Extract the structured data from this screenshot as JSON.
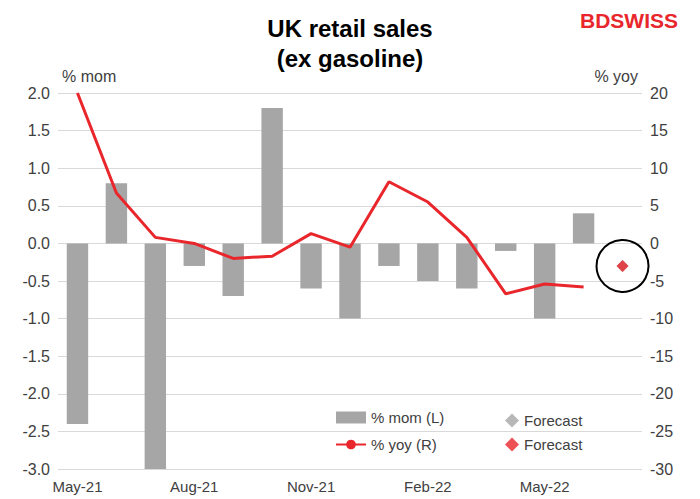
{
  "chart_data": {
    "type": "bar",
    "title": "UK retail sales\n(ex gasoline)",
    "annotations": [
      "BDSWISS"
    ],
    "y_label": "% mom",
    "y2_label": "% yoy",
    "categories": [
      "May-21",
      null,
      null,
      "Aug-21",
      null,
      null,
      "Nov-21",
      null,
      null,
      "Feb-22",
      null,
      null,
      "May-22",
      null,
      null
    ],
    "series": [
      {
        "name": "% mom (L)",
        "type": "bar",
        "axis": "y",
        "color": "#a6a6a6",
        "values": [
          -2.4,
          0.8,
          -3.0,
          -0.3,
          -0.7,
          1.8,
          -0.6,
          -1.0,
          -0.3,
          -0.5,
          -0.6,
          -0.1,
          -1.0,
          0.4,
          null
        ]
      },
      {
        "name": "Forecast",
        "type": "scatter",
        "marker": "diamond",
        "axis": "y",
        "color": "#a6a6a6",
        "values": [
          null,
          null,
          null,
          null,
          null,
          null,
          null,
          null,
          null,
          null,
          null,
          null,
          null,
          null,
          -0.3
        ]
      },
      {
        "name": "% yoy (R)",
        "type": "line",
        "axis": "y2",
        "color": "#e8262b",
        "values": [
          20.0,
          6.7,
          0.8,
          0.0,
          -2.0,
          -1.7,
          1.3,
          -0.5,
          8.2,
          5.5,
          0.8,
          -6.7,
          -5.4,
          -5.8,
          null
        ]
      },
      {
        "name": "Forecast",
        "type": "scatter",
        "marker": "diamond",
        "axis": "y2",
        "color": "#e8262b",
        "values": [
          null,
          null,
          null,
          null,
          null,
          null,
          null,
          null,
          null,
          null,
          null,
          null,
          null,
          null,
          -3.0
        ]
      }
    ],
    "ylim": [
      -3,
      2
    ],
    "yticks": [
      {
        "value": -3,
        "label": "-3.0"
      },
      {
        "value": -2.5,
        "label": "-2.5"
      },
      {
        "value": -2,
        "label": "-2.0"
      },
      {
        "value": -1.5,
        "label": "-1.5"
      },
      {
        "value": -1,
        "label": "-1.0"
      },
      {
        "value": -0.5,
        "label": "-0.5"
      },
      {
        "value": 0,
        "label": "0.0"
      },
      {
        "value": 0.5,
        "label": "0.5"
      },
      {
        "value": 1,
        "label": "1.0"
      },
      {
        "value": 1.5,
        "label": "1.5"
      },
      {
        "value": 2,
        "label": "2.0"
      }
    ],
    "y2lim": [
      -30,
      20
    ],
    "y2ticks": [
      -30,
      -25,
      -20,
      -15,
      -10,
      -5,
      0,
      5,
      10,
      15,
      20
    ],
    "grid": true,
    "legend": "lower right"
  }
}
